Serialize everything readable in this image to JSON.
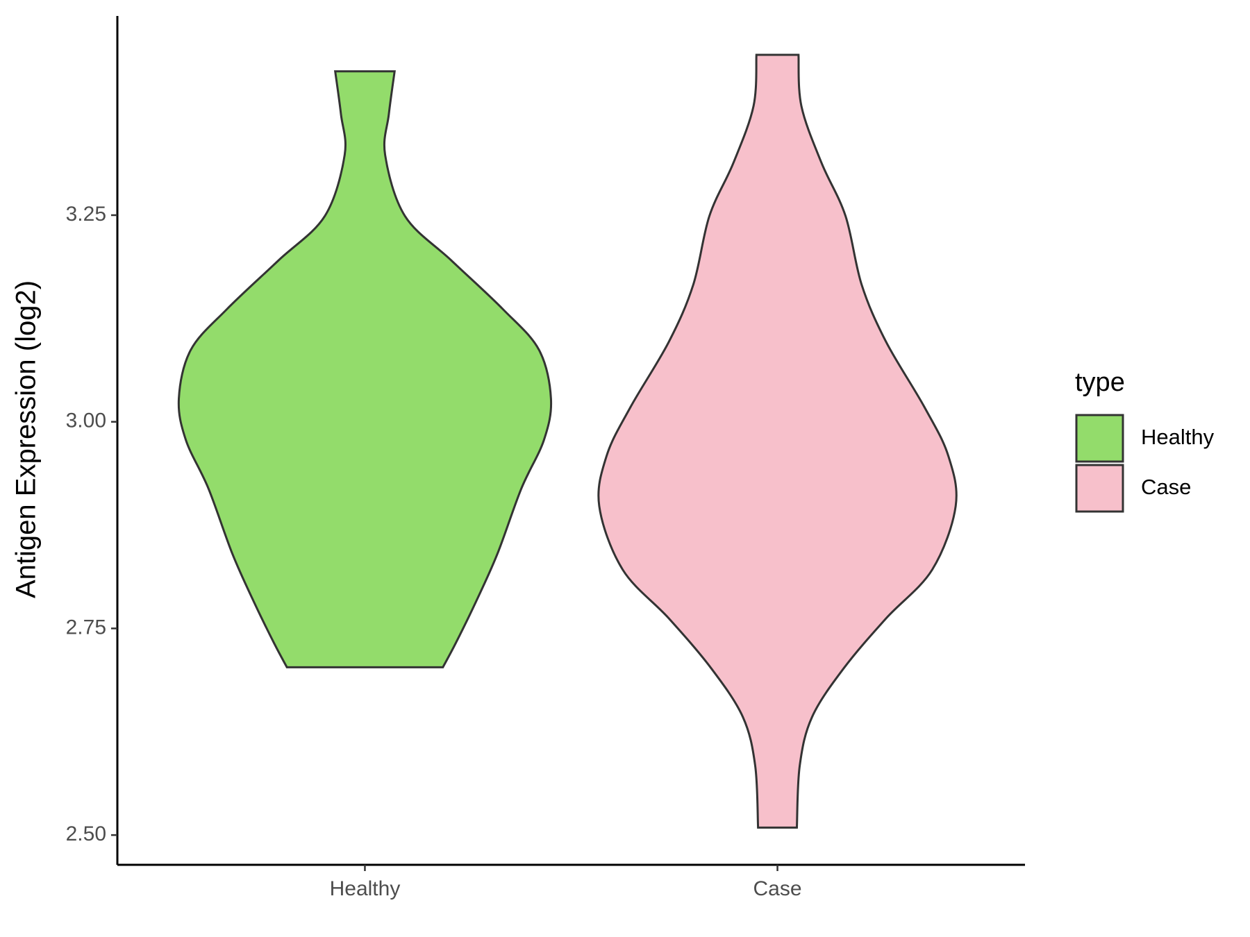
{
  "chart_data": {
    "type": "violin",
    "y_label": "Antigen Expression (log2)",
    "categories": [
      "Healthy",
      "Case"
    ],
    "series": [
      {
        "name": "Healthy",
        "color": "#93dc6b",
        "y": [
          3.424,
          3.372,
          3.323,
          3.249,
          3.195,
          3.136,
          3.087,
          3.028,
          2.978,
          2.919,
          2.84,
          2.781,
          2.732,
          2.703
        ],
        "width": [
          0.072,
          0.058,
          0.049,
          0.097,
          0.21,
          0.335,
          0.422,
          0.451,
          0.434,
          0.379,
          0.321,
          0.268,
          0.22,
          0.189
        ]
      },
      {
        "name": "Case",
        "color": "#f7c0cb",
        "y": [
          3.444,
          3.382,
          3.313,
          3.249,
          3.166,
          3.097,
          3.018,
          2.959,
          2.898,
          2.821,
          2.762,
          2.702,
          2.643,
          2.584,
          2.509
        ],
        "width": [
          0.051,
          0.058,
          0.107,
          0.165,
          0.204,
          0.263,
          0.356,
          0.414,
          0.432,
          0.375,
          0.263,
          0.161,
          0.084,
          0.054,
          0.047
        ]
      }
    ],
    "ylim": [
      2.464,
      3.491
    ],
    "yticks": [
      {
        "value": 2.5,
        "label": "2.50"
      },
      {
        "value": 2.75,
        "label": "2.75"
      },
      {
        "value": 3,
        "label": "3.00"
      },
      {
        "value": 3.25,
        "label": "3.25"
      }
    ],
    "legend_title": "type",
    "legend": "right"
  }
}
